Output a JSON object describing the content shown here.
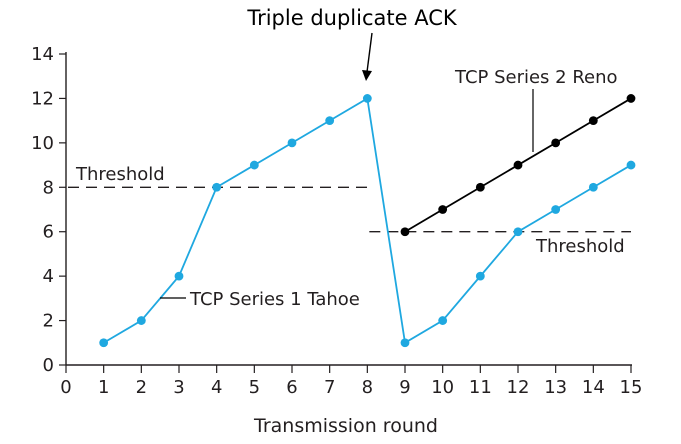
{
  "chart_data": {
    "type": "line",
    "title": "",
    "xlabel": "Transmission round",
    "ylabel": "",
    "xlim": [
      0,
      15
    ],
    "ylim": [
      0,
      14
    ],
    "x_ticks": [
      0,
      1,
      2,
      3,
      4,
      5,
      6,
      7,
      8,
      9,
      10,
      11,
      12,
      13,
      14,
      15
    ],
    "y_ticks": [
      0,
      2,
      4,
      6,
      8,
      10,
      12,
      14
    ],
    "grid": false,
    "series": [
      {
        "name": "TCP Series 1 Tahoe",
        "color": "#1fa8e0",
        "points": [
          [
            1,
            1
          ],
          [
            2,
            2
          ],
          [
            3,
            4
          ],
          [
            4,
            8
          ],
          [
            5,
            9
          ],
          [
            6,
            10
          ],
          [
            7,
            11
          ],
          [
            8,
            12
          ],
          [
            9,
            1
          ],
          [
            10,
            2
          ],
          [
            11,
            4
          ],
          [
            12,
            6
          ],
          [
            13,
            7
          ],
          [
            14,
            8
          ],
          [
            15,
            9
          ]
        ]
      },
      {
        "name": "TCP Series 2 Reno",
        "color": "#000000",
        "points": [
          [
            9,
            6
          ],
          [
            10,
            7
          ],
          [
            11,
            8
          ],
          [
            12,
            9
          ],
          [
            13,
            10
          ],
          [
            14,
            11
          ],
          [
            15,
            12
          ]
        ]
      }
    ],
    "threshold_lines": [
      {
        "label": "Threshold",
        "y": 8,
        "x_from": 0,
        "x_to": 8
      },
      {
        "label": "Threshold",
        "y": 6,
        "x_from": 8,
        "x_to": 15
      }
    ],
    "annotations": {
      "event": "Triple duplicate ACK"
    }
  }
}
